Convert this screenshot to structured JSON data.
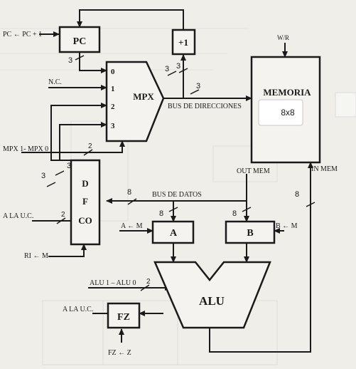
{
  "blocks": {
    "pc": "PC",
    "incrementer": "+1",
    "mpx": "MPX",
    "memory": "MEMORIA",
    "memory_size": "8x8",
    "reg_a": "A",
    "reg_b": "B",
    "alu": "ALU",
    "fz": "FZ",
    "dfco": [
      "D",
      "F",
      "CO"
    ]
  },
  "mpx_inputs": [
    "0",
    "1",
    "2",
    "3"
  ],
  "signals": {
    "pc_inc": "PC ← PC + 1",
    "nc": "N.C.",
    "mpx_sel": "MPX 1- MPX 0",
    "to_uc_1": "A LA U.C.",
    "ri_m": "RI ← M",
    "a_m": "A ← M",
    "b_m": "B ← M",
    "alu_sel": "ALU 1 – ALU 0",
    "to_uc_2": "A LA U.C.",
    "fz_z": "FZ ← Z",
    "wr": "W/R",
    "out_mem": "OUT MEM",
    "in_mem": "IN MEM"
  },
  "buses": {
    "address": "BUS DE DIRECCIONES",
    "data": "BUS DE  DATOS"
  },
  "widths": {
    "pc_out": "3",
    "pc_in": "3",
    "inc_out": "3",
    "address_bus": "3",
    "mpx_sel": "2",
    "dfco_a": "3",
    "dfco_b": "3",
    "uc": "2",
    "data_bus": "8",
    "a_in": "8",
    "b_in": "8",
    "alu_sel": "2",
    "mem_in": "8"
  },
  "colors": {
    "ink": "#1a1a1a",
    "paper": "#efeee9",
    "block_fill": "#f4f3ef"
  }
}
